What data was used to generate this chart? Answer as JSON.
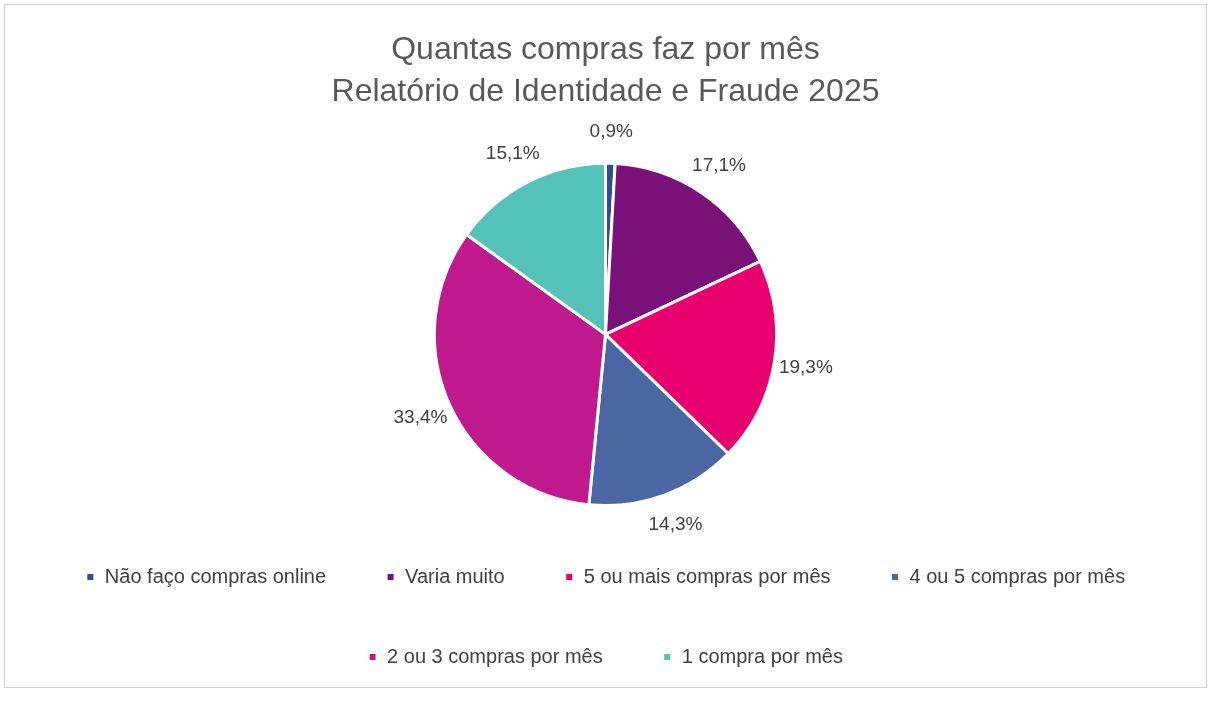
{
  "chart_data": {
    "type": "pie",
    "title": "Quantas compras faz por mês",
    "subtitle": "Relatório de Identidade e Fraude 2025",
    "categories": [
      "Não faço compras online",
      "Varia muito",
      "5 ou mais compras por mês",
      "4 ou 5 compras por mês",
      "2 ou 3 compras por mês",
      "1 compra por mês"
    ],
    "values": [
      0.9,
      17.1,
      19.3,
      14.3,
      33.4,
      15.1
    ],
    "colors": [
      "#2e4e8e",
      "#7a1179",
      "#e8006f",
      "#4a67a3",
      "#c0198e",
      "#55c2ba"
    ],
    "value_labels": [
      "0,9%",
      "17,1%",
      "19,3%",
      "14,3%",
      "33,4%",
      "15,1%"
    ],
    "legend": "bottom"
  }
}
